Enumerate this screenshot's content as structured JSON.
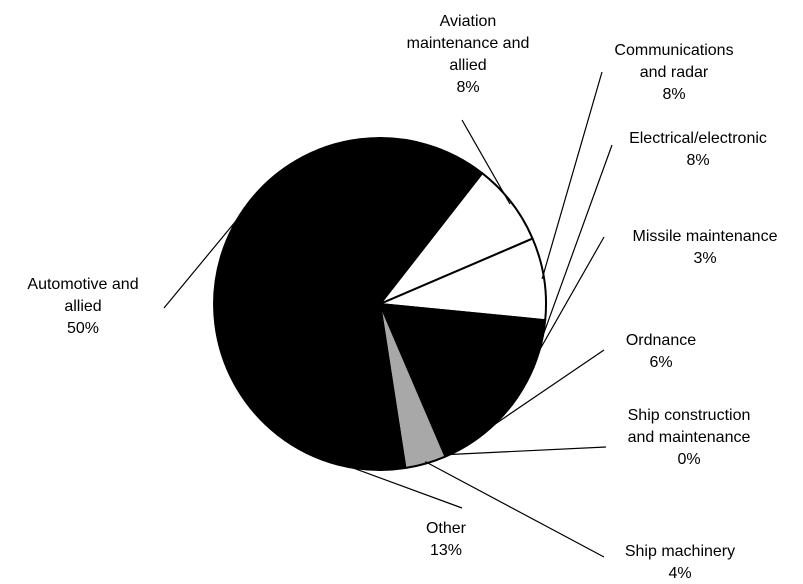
{
  "chart_data": {
    "type": "pie",
    "title": "",
    "start_angle_deg": -52,
    "direction": "clockwise",
    "slices": [
      {
        "id": "aviation",
        "label_lines": [
          "Aviation",
          "maintenance and",
          "allied"
        ],
        "value_text": "8%",
        "value": 8,
        "fill": "#ffffff"
      },
      {
        "id": "communications",
        "label_lines": [
          "Communications",
          "and radar"
        ],
        "value_text": "8%",
        "value": 8,
        "fill": "#ffffff"
      },
      {
        "id": "electrical",
        "label_lines": [
          "Electrical/electronic"
        ],
        "value_text": "8%",
        "value": 8,
        "fill": "#000000"
      },
      {
        "id": "missile",
        "label_lines": [
          "Missile maintenance"
        ],
        "value_text": "3%",
        "value": 3,
        "fill": "#000000"
      },
      {
        "id": "ordnance",
        "label_lines": [
          "Ordnance"
        ],
        "value_text": "6%",
        "value": 6,
        "fill": "#000000"
      },
      {
        "id": "ship-construction",
        "label_lines": [
          "Ship construction",
          "and maintenance"
        ],
        "value_text": "0%",
        "value": 0,
        "fill": "#000000"
      },
      {
        "id": "ship-machinery",
        "label_lines": [
          "Ship machinery"
        ],
        "value_text": "4%",
        "value": 4,
        "fill": "#a8a8a8"
      },
      {
        "id": "other",
        "label_lines": [
          "Other"
        ],
        "value_text": "13%",
        "value": 13,
        "fill": "#000000"
      },
      {
        "id": "automotive",
        "label_lines": [
          "Automotive and",
          "allied"
        ],
        "value_text": "50%",
        "value": 50,
        "fill": "#000000"
      }
    ]
  }
}
